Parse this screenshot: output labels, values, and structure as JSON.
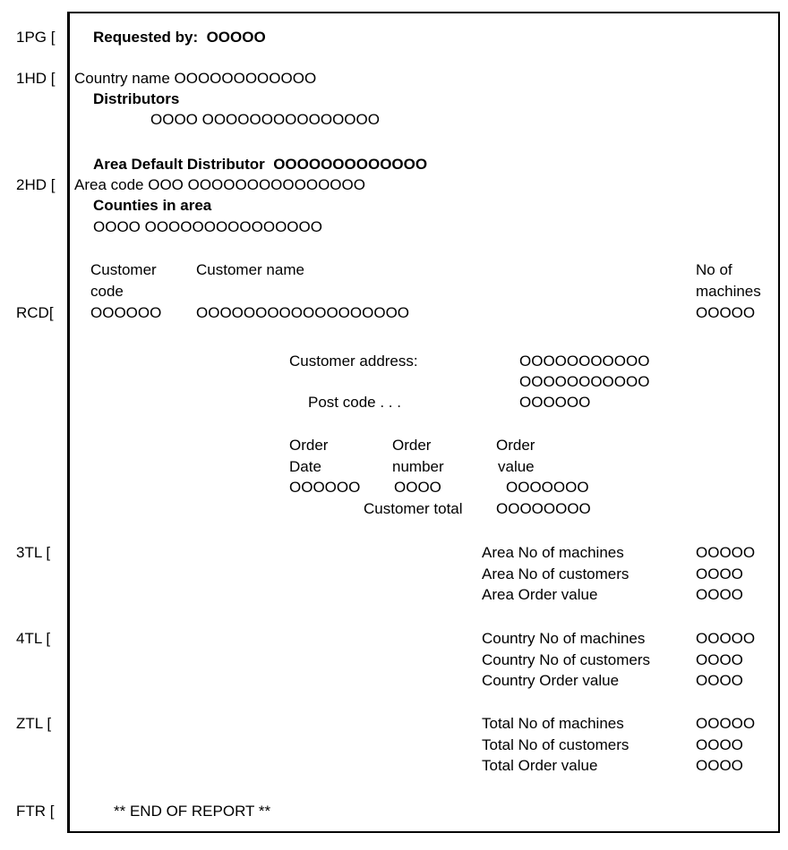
{
  "section_labels": {
    "pg": "1PG [",
    "hd1": "1HD [",
    "hd2": "2HD [",
    "rcd": "RCD[",
    "tl3": "3TL [",
    "tl4": "4TL [",
    "ztl": "ZTL [",
    "ftr": "FTR ["
  },
  "page_header": {
    "requested_by": "Requested by:  OOOOO"
  },
  "country_header": {
    "country_name": "Country name OOOOOOOOOOOO",
    "distributors_title": "Distributors",
    "distributors_value": "OOOO OOOOOOOOOOOOOOO"
  },
  "area_header": {
    "default_distributor": "Area Default Distributor  OOOOOOOOOOOOO",
    "area_code": "Area code OOO OOOOOOOOOOOOOOO",
    "counties_title": "Counties in area",
    "counties_value": "OOOO OOOOOOOOOOOOOOO"
  },
  "record": {
    "col_code_1": "Customer",
    "col_code_2": "code",
    "col_name": "Customer name",
    "col_machines_1": "No of",
    "col_machines_2": "machines",
    "code_value": "OOOOOO",
    "name_value": "OOOOOOOOOOOOOOOOOO",
    "machines_value": "OOOOO",
    "address_label": "Customer address:",
    "address_line1": "OOOOOOOOOOO",
    "address_line2": "OOOOOOOOOOO",
    "postcode_label": "Post code . . .",
    "postcode_value": "OOOOOO",
    "order_date_1": "Order",
    "order_date_2": "Date",
    "order_number_1": "Order",
    "order_number_2": "number",
    "order_value_1": "Order",
    "order_value_2": "value",
    "order_date_value": "OOOOOO",
    "order_number_value": "OOOO",
    "order_value_value": "OOOOOOO",
    "customer_total_label": "Customer total",
    "customer_total_value": "OOOOOOOO"
  },
  "area_totals": [
    {
      "label": "Area No of machines",
      "value": "OOOOO"
    },
    {
      "label": "Area No of customers",
      "value": "OOOO"
    },
    {
      "label": "Area Order value",
      "value": "OOOO"
    }
  ],
  "country_totals": [
    {
      "label": "Country No of machines",
      "value": "OOOOO"
    },
    {
      "label": "Country No of customers",
      "value": "OOOO"
    },
    {
      "label": "Country Order value",
      "value": "OOOO"
    }
  ],
  "grand_totals": [
    {
      "label": "Total No of machines",
      "value": "OOOOO"
    },
    {
      "label": "Total No of customers",
      "value": "OOOO"
    },
    {
      "label": "Total Order value",
      "value": "OOOO"
    }
  ],
  "footer": {
    "end": "** END OF REPORT **"
  }
}
